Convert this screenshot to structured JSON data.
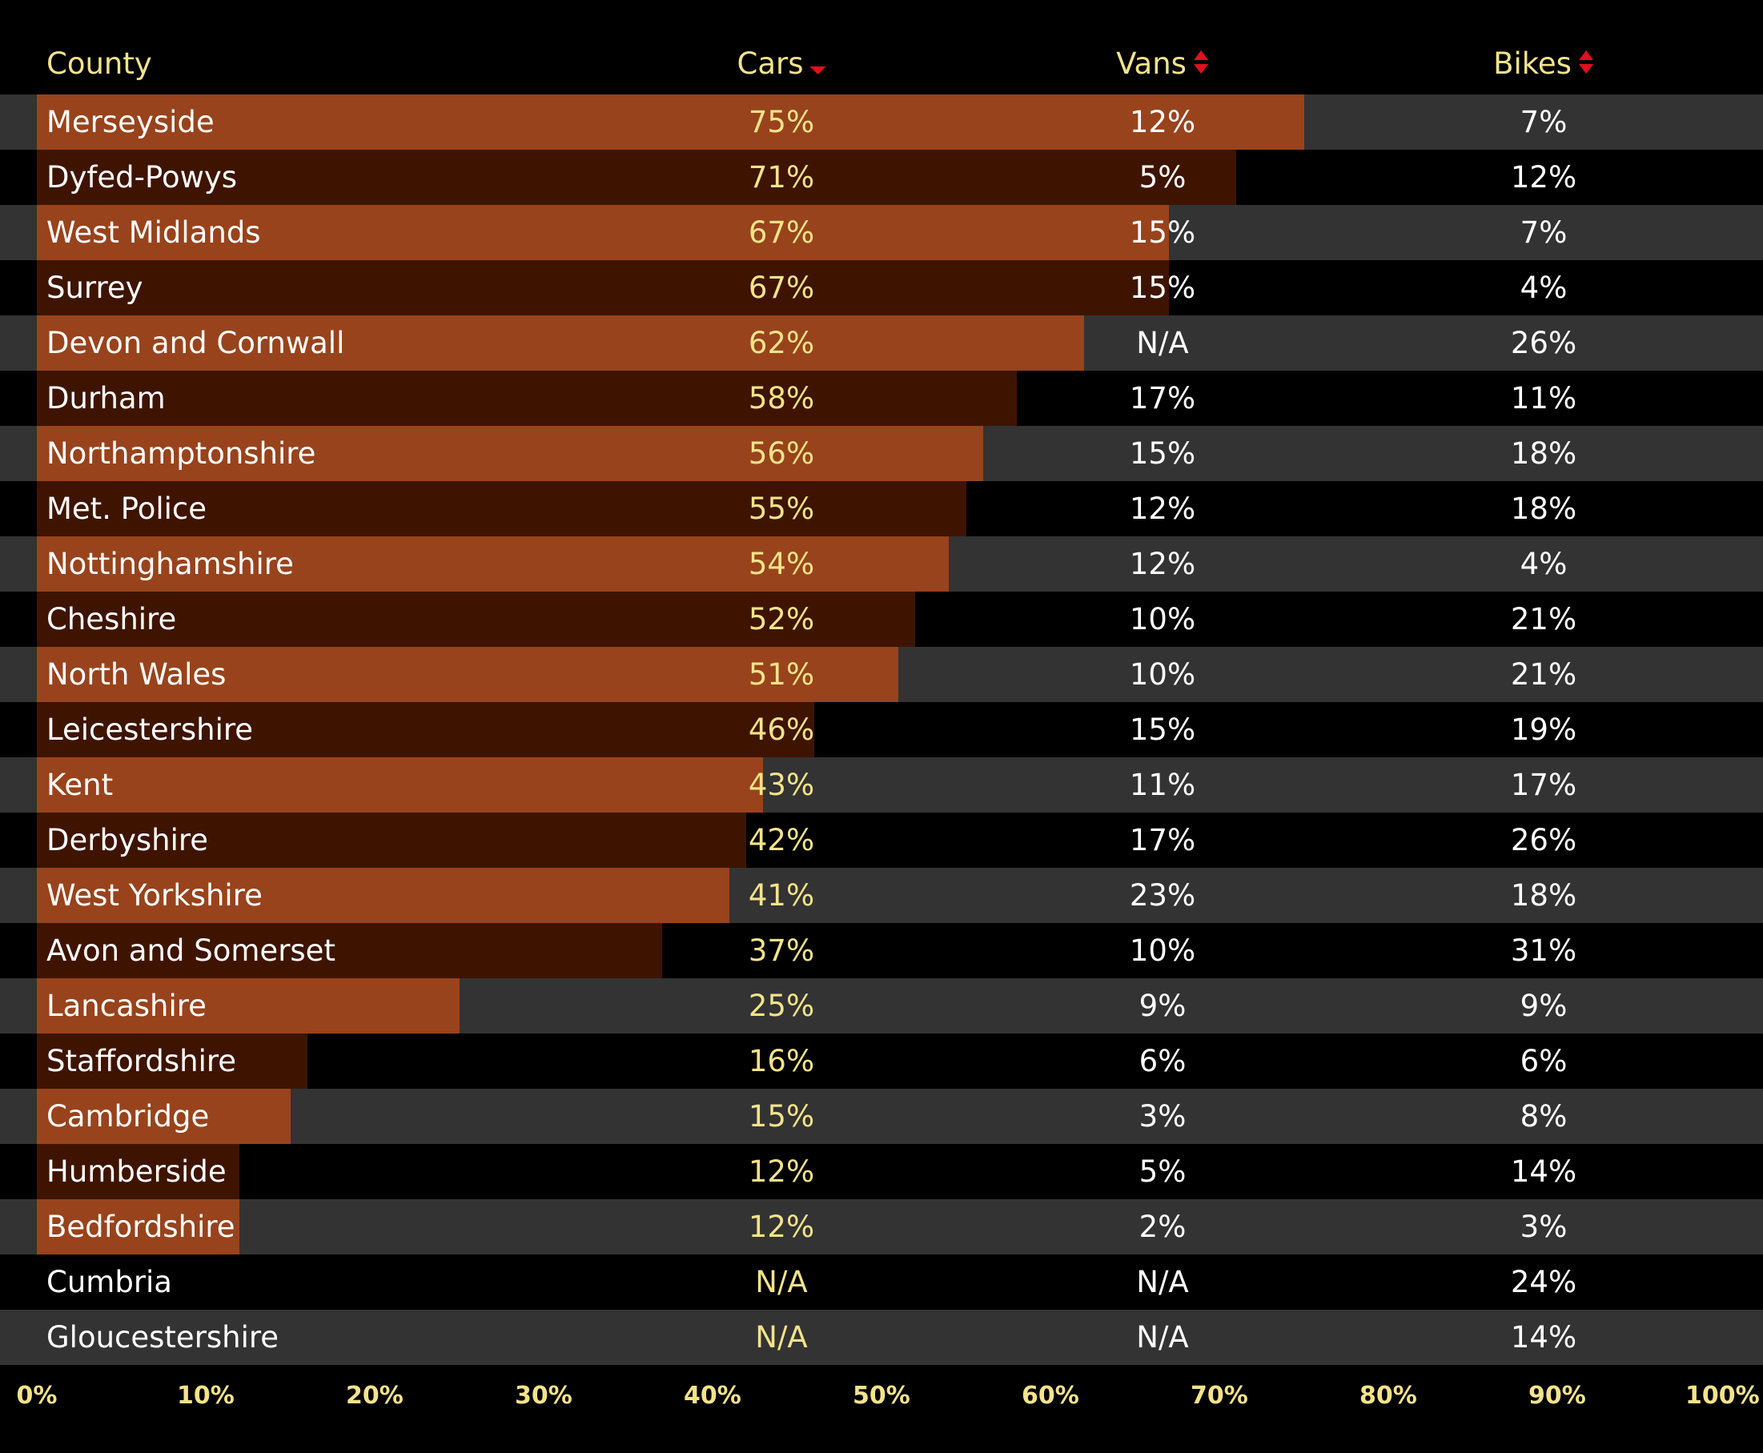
{
  "colors": {
    "bar_light": "#98431c",
    "bar_dark": "#3e1400",
    "row_light": "#333333",
    "row_dark": "#000000",
    "header_text": "#f4e38a",
    "cars_text": "#f4e38a",
    "other_text": "#ffffff",
    "sort_arrow": "#e0101c"
  },
  "columns": {
    "county": "County",
    "cars": "Cars",
    "vans": "Vans",
    "bikes": "Bikes",
    "cars_sort_icon": "sort-down-icon",
    "vans_sort_icon": "sort-both-icon",
    "bikes_sort_icon": "sort-both-icon"
  },
  "chart_data": {
    "type": "bar",
    "orientation": "horizontal",
    "bar_series": "Cars",
    "xlim": [
      0,
      100
    ],
    "x_ticks": [
      "0%",
      "10%",
      "20%",
      "30%",
      "40%",
      "50%",
      "60%",
      "70%",
      "80%",
      "90%",
      "100%"
    ],
    "categories": [
      "Merseyside",
      "Dyfed-Powys",
      "West Midlands",
      "Surrey",
      "Devon and Cornwall",
      "Durham",
      "Northamptonshire",
      "Met. Police",
      "Nottinghamshire",
      "Cheshire",
      "North Wales",
      "Leicestershire",
      "Kent",
      "Derbyshire",
      "West Yorkshire",
      "Avon and Somerset",
      "Lancashire",
      "Staffordshire",
      "Cambridge",
      "Humberside",
      "Bedfordshire",
      "Cumbria",
      "Gloucestershire"
    ],
    "series": [
      {
        "name": "Cars",
        "values": [
          75,
          71,
          67,
          67,
          62,
          58,
          56,
          55,
          54,
          52,
          51,
          46,
          43,
          42,
          41,
          37,
          25,
          16,
          15,
          12,
          12,
          null,
          null
        ],
        "labels": [
          "75%",
          "71%",
          "67%",
          "67%",
          "62%",
          "58%",
          "56%",
          "55%",
          "54%",
          "52%",
          "51%",
          "46%",
          "43%",
          "42%",
          "41%",
          "37%",
          "25%",
          "16%",
          "15%",
          "12%",
          "12%",
          "N/A",
          "N/A"
        ]
      },
      {
        "name": "Vans",
        "values": [
          12,
          5,
          15,
          15,
          null,
          17,
          15,
          12,
          12,
          10,
          10,
          15,
          11,
          17,
          23,
          10,
          9,
          6,
          3,
          5,
          2,
          null,
          null
        ],
        "labels": [
          "12%",
          "5%",
          "15%",
          "15%",
          "N/A",
          "17%",
          "15%",
          "12%",
          "12%",
          "10%",
          "10%",
          "15%",
          "11%",
          "17%",
          "23%",
          "10%",
          "9%",
          "6%",
          "3%",
          "5%",
          "2%",
          "N/A",
          "N/A"
        ]
      },
      {
        "name": "Bikes",
        "values": [
          7,
          12,
          7,
          4,
          26,
          11,
          18,
          18,
          4,
          21,
          21,
          19,
          17,
          26,
          18,
          31,
          9,
          6,
          8,
          14,
          3,
          24,
          14
        ],
        "labels": [
          "7%",
          "12%",
          "7%",
          "4%",
          "26%",
          "11%",
          "18%",
          "18%",
          "4%",
          "21%",
          "21%",
          "19%",
          "17%",
          "26%",
          "18%",
          "31%",
          "9%",
          "6%",
          "8%",
          "14%",
          "3%",
          "24%",
          "14%"
        ]
      }
    ]
  }
}
